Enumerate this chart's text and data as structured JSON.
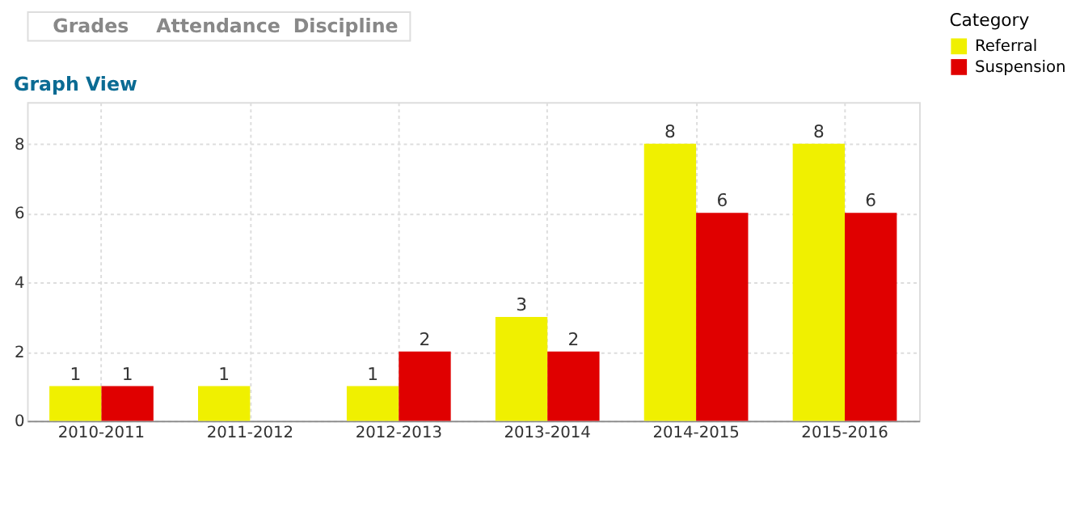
{
  "chart_data": {
    "type": "bar",
    "title": "Graph View",
    "annotations": [
      "Grades",
      "Attendance",
      "Discipline"
    ],
    "categories": [
      "2010-2011",
      "2011-2012",
      "2012-2013",
      "2013-2014",
      "2014-2015",
      "2015-2016"
    ],
    "series": [
      {
        "name": "Referral",
        "color": "#f0f000",
        "values": [
          1,
          1,
          1,
          3,
          8,
          8
        ]
      },
      {
        "name": "Suspension",
        "color": "#e00000",
        "values": [
          1,
          null,
          2,
          2,
          6,
          6
        ]
      }
    ],
    "legend_title": "Category",
    "legend": "top right",
    "ylim": [
      0,
      9.2
    ],
    "yticks": [
      0,
      2,
      4,
      6,
      8
    ],
    "grid": true,
    "data_labels": true
  }
}
